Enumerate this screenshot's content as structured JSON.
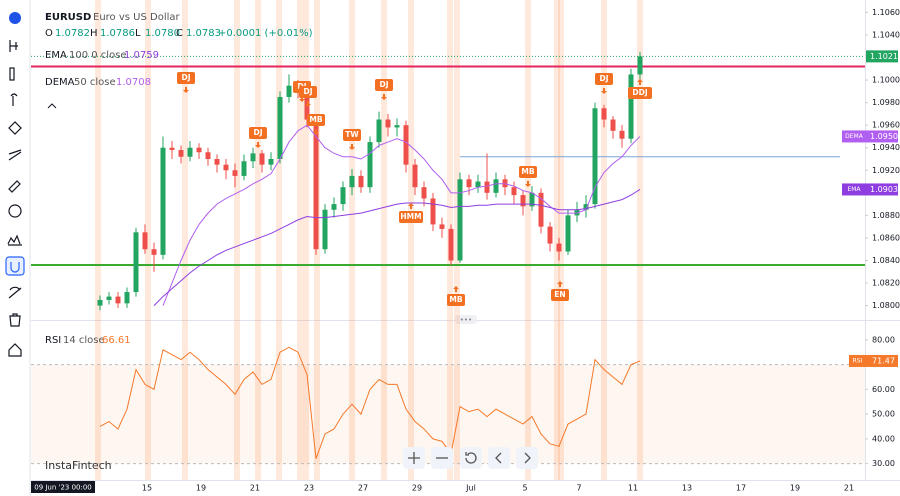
{
  "header": {
    "symbol": "EURUSD",
    "description": "Euro vs US Dollar",
    "ohlc": [
      {
        "label": "O",
        "value": "1.0782"
      },
      {
        "label": "H",
        "value": "1.0786"
      },
      {
        "label": "L",
        "value": "1.0780"
      },
      {
        "label": "C",
        "value": "1.0783"
      }
    ],
    "change": "+0.0001 (+0.01%)"
  },
  "indicators": [
    {
      "name": "EMA",
      "params": "100 0 close",
      "value": "1.0759"
    },
    {
      "name": "DEMA",
      "params": "50 close",
      "value": "1.0708"
    }
  ],
  "chart_data": {
    "type": "candlestick",
    "open": [
      1.08,
      1.0805,
      1.0808,
      1.0802,
      1.0812,
      1.0865,
      1.085,
      1.0845,
      1.094,
      1.0938,
      1.0932,
      1.094,
      1.0936,
      1.093,
      1.0925,
      1.092,
      1.0915,
      1.0928,
      1.0935,
      1.0925,
      1.093,
      1.0985,
      1.0995,
      1.099,
      1.0965,
      1.085,
      1.0885,
      1.089,
      1.0905,
      1.0915,
      1.0905,
      1.0945,
      1.0965,
      1.0958,
      1.096,
      1.0925,
      1.0905,
      1.0895,
      1.0872,
      1.0868,
      1.084,
      1.0912,
      1.0905,
      1.091,
      1.09,
      1.0912,
      1.0905,
      1.0898,
      1.0888,
      1.09,
      1.087,
      1.0855,
      1.0848,
      1.088,
      1.0885,
      1.089,
      1.0975,
      1.0965,
      1.0955,
      1.0948,
      1.1005
    ],
    "high": [
      1.0809,
      1.0812,
      1.0812,
      1.0816,
      1.0869,
      1.0872,
      1.0856,
      1.095,
      1.0946,
      1.0942,
      1.0946,
      1.0944,
      1.094,
      1.0934,
      1.093,
      1.0926,
      1.0934,
      1.094,
      1.0938,
      1.0936,
      1.099,
      1.1005,
      1.1,
      1.0994,
      1.0968,
      1.089,
      1.0896,
      1.091,
      1.0921,
      1.092,
      1.095,
      1.0972,
      1.097,
      1.0966,
      1.0964,
      1.093,
      1.091,
      1.09,
      1.0878,
      1.0872,
      1.0918,
      1.0916,
      1.0916,
      1.0935,
      1.0918,
      1.0916,
      1.091,
      1.0902,
      1.0906,
      1.0904,
      1.0874,
      1.086,
      1.0885,
      1.0892,
      1.0898,
      1.098,
      1.0978,
      1.0968,
      1.096,
      1.101,
      1.1025
    ],
    "low": [
      1.0796,
      1.0801,
      1.0798,
      1.0798,
      1.0808,
      1.0846,
      1.083,
      1.0841,
      1.093,
      1.0926,
      1.0928,
      1.093,
      1.0924,
      1.0918,
      1.0912,
      1.0905,
      1.0911,
      1.0922,
      1.0918,
      1.092,
      1.0926,
      1.098,
      1.0984,
      1.0958,
      1.0845,
      1.0846,
      1.0878,
      1.0884,
      1.0898,
      1.09,
      1.09,
      1.094,
      1.095,
      1.095,
      1.0918,
      1.0898,
      1.0888,
      1.0866,
      1.086,
      1.0836,
      1.0838,
      1.0898,
      1.09,
      1.0894,
      1.0896,
      1.0898,
      1.089,
      1.088,
      1.0884,
      1.0864,
      1.0848,
      1.084,
      1.0845,
      1.0874,
      1.0878,
      1.0886,
      1.0958,
      1.0948,
      1.094,
      1.0944,
      1.1
    ],
    "close": [
      1.0805,
      1.0808,
      1.0802,
      1.0812,
      1.0865,
      1.085,
      1.0845,
      1.094,
      1.0938,
      1.0932,
      1.094,
      1.0936,
      1.093,
      1.0925,
      1.092,
      1.0915,
      1.0928,
      1.0935,
      1.0925,
      1.093,
      1.0985,
      1.0995,
      1.099,
      1.0965,
      1.085,
      1.0885,
      1.089,
      1.0905,
      1.0915,
      1.0905,
      1.0945,
      1.0965,
      1.0958,
      1.096,
      1.0925,
      1.0905,
      1.0895,
      1.0872,
      1.0868,
      1.084,
      1.0912,
      1.0905,
      1.091,
      1.09,
      1.0912,
      1.0905,
      1.0898,
      1.0888,
      1.09,
      1.087,
      1.0855,
      1.0848,
      1.088,
      1.0885,
      1.089,
      1.0975,
      1.0965,
      1.0955,
      1.0948,
      1.1005,
      1.1021
    ],
    "last_price_label": "1.1021",
    "up_color": "#22a560",
    "down_color": "#ef4f4a",
    "ylim": [
      1.0789,
      1.1071
    ],
    "yticks": [
      {
        "value": 1.106,
        "label": "1.1060"
      },
      {
        "value": 1.104,
        "label": "1.1040"
      },
      {
        "value": 1.1,
        "label": "1.1000"
      },
      {
        "value": 1.098,
        "label": "1.0980"
      },
      {
        "value": 1.096,
        "label": "1.0960"
      },
      {
        "value": 1.094,
        "label": "1.0940"
      },
      {
        "value": 1.092,
        "label": "1.0920"
      },
      {
        "value": 1.088,
        "label": "1.0880"
      },
      {
        "value": 1.086,
        "label": "1.0860"
      },
      {
        "value": 1.084,
        "label": "1.0840"
      },
      {
        "value": 1.082,
        "label": "1.0820"
      },
      {
        "value": 1.08,
        "label": "1.0800"
      }
    ],
    "lines": [
      {
        "name": "DEMA",
        "color": "#b05ff0",
        "value_label": "1.0950",
        "values": [
          null,
          null,
          null,
          null,
          null,
          null,
          null,
          1.08,
          1.082,
          1.084,
          1.0858,
          1.0872,
          1.0882,
          1.089,
          1.0895,
          1.0899,
          1.0903,
          1.0908,
          1.0912,
          1.0917,
          1.093,
          1.0945,
          1.0955,
          1.096,
          1.095,
          1.094,
          1.0935,
          1.0932,
          1.0932,
          1.093,
          1.0935,
          1.0942,
          1.0945,
          1.0948,
          1.0945,
          1.0938,
          1.093,
          1.092,
          1.0912,
          1.09,
          1.09,
          1.0902,
          1.0905,
          1.0906,
          1.0908,
          1.0908,
          1.0906,
          1.0902,
          1.09,
          1.0895,
          1.0888,
          1.0882,
          1.0882,
          1.0882,
          1.0885,
          1.0905,
          1.0918,
          1.0926,
          1.0932,
          1.0942,
          1.095
        ]
      },
      {
        "name": "EMA",
        "color": "#8e3ee0",
        "value_label": "1.0903",
        "values": [
          null,
          null,
          null,
          null,
          null,
          null,
          1.08,
          1.0808,
          1.0815,
          1.0822,
          1.0829,
          1.0835,
          1.084,
          1.0845,
          1.0849,
          1.0852,
          1.0855,
          1.0858,
          1.0861,
          1.0864,
          1.0868,
          1.0872,
          1.0876,
          1.0879,
          1.0878,
          1.0878,
          1.0879,
          1.088,
          1.0881,
          1.0882,
          1.0884,
          1.0886,
          1.0888,
          1.089,
          1.0891,
          1.0891,
          1.0891,
          1.089,
          1.0889,
          1.0887,
          1.0888,
          1.0888,
          1.0889,
          1.0889,
          1.089,
          1.089,
          1.089,
          1.089,
          1.089,
          1.0889,
          1.0887,
          1.0885,
          1.0885,
          1.0885,
          1.0886,
          1.0888,
          1.089,
          1.0892,
          1.0894,
          1.0898,
          1.0903
        ]
      }
    ],
    "levels": [
      {
        "value": 1.1012,
        "color": "#e3245f"
      },
      {
        "value": 1.0836,
        "color": "#3aab2f"
      },
      {
        "value": 1.0932,
        "color": "#7aa7d8"
      }
    ],
    "events": [
      "DJ",
      "DJ",
      "DJ",
      "DJ",
      "MB",
      "TW",
      "DJ",
      "HMM",
      "MB",
      "MB",
      "EN",
      "DJ",
      "DDJ"
    ],
    "time_labels": [
      "15",
      "19",
      "21",
      "23",
      "27",
      "29",
      "Jul",
      "5",
      "7",
      "11",
      "13",
      "17",
      "19",
      "21"
    ],
    "crosshair_date": "09 Jun '23 00:00",
    "watermark": "InstaFintech",
    "rsi": {
      "type": "line",
      "name": "RSI",
      "params": "14 close",
      "value": "66.61",
      "value_label": "71.47",
      "color": "#f5792a",
      "values": [
        45,
        47,
        44,
        52,
        68,
        62,
        60,
        76,
        74,
        72,
        75,
        72,
        68,
        65,
        62,
        58,
        64,
        67,
        62,
        64,
        75,
        77,
        75,
        66,
        32,
        42,
        44,
        50,
        54,
        50,
        60,
        64,
        62,
        62,
        52,
        47,
        44,
        40,
        39,
        34,
        53,
        51,
        52,
        49,
        52,
        50,
        48,
        46,
        49,
        42,
        38,
        37,
        46,
        48,
        50,
        72,
        68,
        65,
        62,
        70,
        71.47
      ],
      "band": [
        30,
        70
      ],
      "ylim": [
        25,
        86
      ],
      "yticks": [
        {
          "value": 80,
          "label": "80.00"
        },
        {
          "value": 60,
          "label": "60.00"
        },
        {
          "value": 50,
          "label": "50.00"
        },
        {
          "value": 40,
          "label": "40.00"
        },
        {
          "value": 30,
          "label": "30.00"
        }
      ]
    }
  }
}
